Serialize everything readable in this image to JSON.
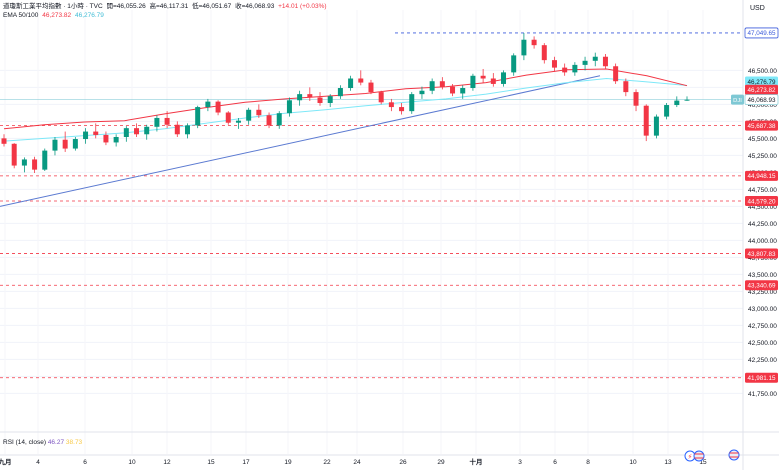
{
  "header": {
    "symbol_name": "道瓊斯工業平均指數 · 1小時 · TVC",
    "open_label": "開=46,055.26",
    "high_label": "高=46,117.31",
    "low_label": "低=46,051.67",
    "close_label": "收=46,068.93",
    "change_label": "+14.01 (+0.03%)",
    "ema_label": "EMA 50/100",
    "ema50_value": "46,273.82",
    "ema100_value": "46,276.79"
  },
  "currency": "USD",
  "rsi": {
    "label": "RSI (14, close)",
    "value": "46.27",
    "ma_value": "38.73"
  },
  "colors": {
    "up": "#089981",
    "down": "#f23645",
    "ema50": "#f23645",
    "ema100": "#7ee8f8",
    "trendline": "#5b7ad1",
    "level": "#f23645",
    "top_level": "#3b5bdb"
  },
  "chart_data": {
    "type": "candlestick",
    "y_axis_ticks": [
      "46,500.00",
      "46,250.00",
      "46,000.00",
      "45,750.00",
      "45,500.00",
      "45,250.00",
      "45,000.00",
      "44,750.00",
      "44,500.00",
      "44,250.00",
      "44,000.00",
      "43,750.00",
      "43,500.00",
      "43,250.00",
      "43,000.00",
      "42,750.00",
      "42,500.00",
      "42,250.00",
      "42,000.00",
      "41,750.00"
    ],
    "x_axis_ticks": [
      "九月",
      "4",
      "6",
      "10",
      "12",
      "15",
      "17",
      "19",
      "22",
      "24",
      "26",
      "29",
      "十月",
      "3",
      "6",
      "8",
      "10",
      "13",
      "15"
    ],
    "ylim": [
      41580,
      47240
    ],
    "price_tags": [
      {
        "label": "47,049.65",
        "value": 47049.65,
        "style": "top"
      },
      {
        "label": "46,276.79",
        "value": 46276.79,
        "style": "ema100"
      },
      {
        "label": "46,273.82",
        "value": 46273.82,
        "style": "ema50"
      },
      {
        "label": "46,068.93",
        "value": 46068.93,
        "style": "last",
        "prefix": "DJI"
      },
      {
        "label": "45,687.38",
        "value": 45687.38,
        "style": "level"
      },
      {
        "label": "44,948.15",
        "value": 44948.15,
        "style": "level"
      },
      {
        "label": "44,579.20",
        "value": 44579.2,
        "style": "level"
      },
      {
        "label": "43,807.83",
        "value": 43807.83,
        "style": "level"
      },
      {
        "label": "43,340.69",
        "value": 43340.69,
        "style": "level"
      },
      {
        "label": "41,981.15",
        "value": 41981.15,
        "style": "level"
      }
    ],
    "trendline": {
      "from": [
        "九月",
        44500
      ],
      "to": [
        "8",
        46420
      ]
    },
    "series": [
      {
        "name": "EMA 50",
        "values": [
          45640,
          45700,
          45740,
          45760,
          45860,
          45950,
          46030,
          46080,
          46120,
          46160,
          46230,
          46260,
          46320,
          46430,
          46510,
          46520,
          46420,
          46273.82
        ]
      },
      {
        "name": "EMA 100",
        "values": [
          45460,
          45500,
          45540,
          45580,
          45640,
          45720,
          45800,
          45870,
          45920,
          45980,
          46030,
          46080,
          46150,
          46240,
          46320,
          46380,
          46330,
          46276.79
        ]
      }
    ],
    "candles": [
      [
        45500,
        45560,
        45380,
        45420
      ],
      [
        45420,
        45430,
        45060,
        45100
      ],
      [
        45100,
        45220,
        45000,
        45190
      ],
      [
        45190,
        45230,
        44990,
        45040
      ],
      [
        45040,
        45350,
        45020,
        45320
      ],
      [
        45320,
        45520,
        45250,
        45480
      ],
      [
        45480,
        45600,
        45300,
        45350
      ],
      [
        45350,
        45520,
        45320,
        45490
      ],
      [
        45490,
        45650,
        45420,
        45600
      ],
      [
        45600,
        45720,
        45500,
        45550
      ],
      [
        45550,
        45600,
        45400,
        45440
      ],
      [
        45440,
        45560,
        45380,
        45520
      ],
      [
        45520,
        45680,
        45450,
        45650
      ],
      [
        45650,
        45720,
        45520,
        45560
      ],
      [
        45560,
        45700,
        45480,
        45670
      ],
      [
        45670,
        45840,
        45600,
        45800
      ],
      [
        45800,
        45900,
        45650,
        45700
      ],
      [
        45700,
        45750,
        45520,
        45560
      ],
      [
        45560,
        45720,
        45500,
        45690
      ],
      [
        45690,
        45980,
        45650,
        45960
      ],
      [
        45960,
        46080,
        45900,
        46040
      ],
      [
        46040,
        46060,
        45840,
        45880
      ],
      [
        45880,
        45900,
        45700,
        45730
      ],
      [
        45730,
        45800,
        45640,
        45760
      ],
      [
        45760,
        45950,
        45700,
        45920
      ],
      [
        45920,
        46000,
        45800,
        45840
      ],
      [
        45840,
        45880,
        45650,
        45690
      ],
      [
        45690,
        45900,
        45640,
        45870
      ],
      [
        45870,
        46100,
        45820,
        46060
      ],
      [
        46060,
        46200,
        45980,
        46150
      ],
      [
        46150,
        46250,
        46050,
        46100
      ],
      [
        46100,
        46180,
        45980,
        46020
      ],
      [
        46020,
        46150,
        45960,
        46120
      ],
      [
        46120,
        46280,
        46080,
        46240
      ],
      [
        46240,
        46420,
        46200,
        46380
      ],
      [
        46380,
        46500,
        46280,
        46320
      ],
      [
        46320,
        46360,
        46150,
        46180
      ],
      [
        46180,
        46200,
        46000,
        46030
      ],
      [
        46030,
        46080,
        45900,
        45960
      ],
      [
        45960,
        46020,
        45850,
        45900
      ],
      [
        45900,
        46180,
        45860,
        46150
      ],
      [
        46150,
        46260,
        46080,
        46200
      ],
      [
        46200,
        46380,
        46150,
        46340
      ],
      [
        46340,
        46400,
        46220,
        46260
      ],
      [
        46260,
        46300,
        46120,
        46160
      ],
      [
        46160,
        46280,
        46080,
        46240
      ],
      [
        46240,
        46450,
        46200,
        46420
      ],
      [
        46420,
        46520,
        46320,
        46380
      ],
      [
        46380,
        46460,
        46260,
        46300
      ],
      [
        46300,
        46500,
        46260,
        46470
      ],
      [
        46470,
        46750,
        46420,
        46720
      ],
      [
        46720,
        47049,
        46650,
        46950
      ],
      [
        46950,
        47000,
        46820,
        46870
      ],
      [
        46870,
        46900,
        46600,
        46650
      ],
      [
        46650,
        46700,
        46480,
        46540
      ],
      [
        46540,
        46600,
        46420,
        46470
      ],
      [
        46470,
        46620,
        46420,
        46580
      ],
      [
        46580,
        46700,
        46500,
        46640
      ],
      [
        46640,
        46760,
        46560,
        46700
      ],
      [
        46700,
        46740,
        46520,
        46560
      ],
      [
        46560,
        46600,
        46300,
        46340
      ],
      [
        46340,
        46380,
        46120,
        46180
      ],
      [
        46180,
        46220,
        45900,
        45980
      ],
      [
        45980,
        46000,
        45460,
        45540
      ],
      [
        45540,
        45850,
        45500,
        45820
      ],
      [
        45820,
        46020,
        45780,
        45990
      ],
      [
        45990,
        46117,
        45960,
        46055
      ],
      [
        46055.26,
        46117.31,
        46051.67,
        46068.93
      ]
    ]
  }
}
